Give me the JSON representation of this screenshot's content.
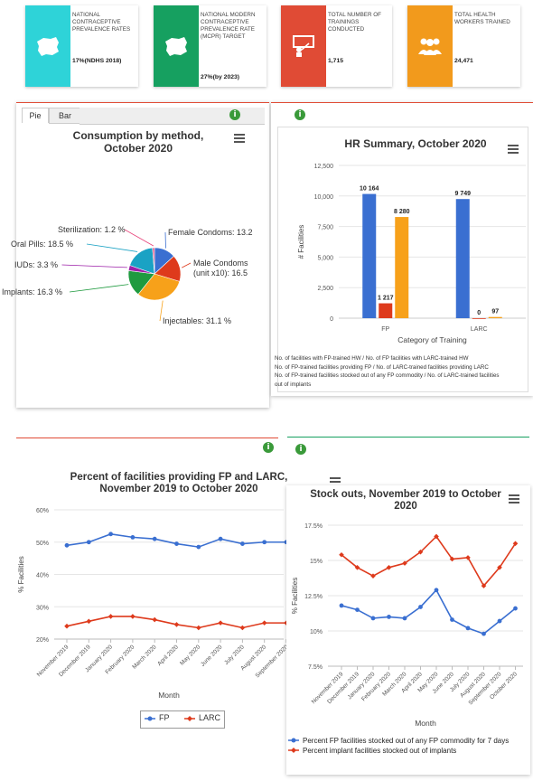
{
  "kpis": [
    {
      "label": "NATIONAL CONTRACEPTIVE PREVALENCE RATES",
      "value": "17%(NDHS 2018)",
      "color": "#2ed3d8",
      "icon": "nigeria-map-icon"
    },
    {
      "label": "NATIONAL MODERN CONTRACEPTIVE PREVALENCE RATE (mCPR) TARGET",
      "value": "27%(by 2023)",
      "color": "#16a060",
      "icon": "nigeria-map-icon"
    },
    {
      "label": "TOTAL NUMBER OF TRAININGS CONDUCTED",
      "value": "1,715",
      "color": "#e04b35",
      "icon": "training-icon"
    },
    {
      "label": "TOTAL HEALTH WORKERS TRAINED",
      "value": "24,471",
      "color": "#f29a1c",
      "icon": "people-icon"
    }
  ],
  "tabs": {
    "pie": "Pie",
    "bar": "Bar"
  },
  "info_glyph": "i",
  "charts": [
    {
      "id": "consumption",
      "chart_data": {
        "type": "pie",
        "title": "Consumption by method, October 2020",
        "slices": [
          {
            "label": "Female Condoms: 13.2",
            "value": 13.2,
            "color": "#3a6fd1"
          },
          {
            "label": "Male Condoms (unit x10): 16.5",
            "value": 16.5,
            "color": "#de3a1c"
          },
          {
            "label": "Injectables: 31.1 %",
            "value": 31.1,
            "color": "#f7a11a"
          },
          {
            "label": "Implants: 16.3 %",
            "value": 16.3,
            "color": "#1f9a3f"
          },
          {
            "label": "IUDs: 3.3 %",
            "value": 3.3,
            "color": "#9c1ea8"
          },
          {
            "label": "Oral Pills: 18.5 %",
            "value": 18.5,
            "color": "#1aa2c4"
          },
          {
            "label": "Sterilization: 1.2 %",
            "value": 1.2,
            "color": "#e8427a"
          }
        ]
      }
    },
    {
      "id": "hr",
      "chart_data": {
        "type": "bar",
        "title": "HR Summary, October 2020",
        "categories": [
          "FP",
          "LARC"
        ],
        "xlabel": "Category of Training",
        "ylabel": "# Facilities",
        "ylim": [
          0,
          12500
        ],
        "yticks": [
          "0",
          "2,500",
          "5,000",
          "7,500",
          "10,000",
          "12,500"
        ],
        "series": [
          {
            "name": "No. of facilities with FP-trained HW / No. of FP facilities with LARC-trained HW",
            "values": [
              10164,
              9749
            ],
            "labels": [
              "10 164",
              "9 749"
            ],
            "color": "#3a6fd1"
          },
          {
            "name": "No. of FP-trained facilities providing FP / No. of LARC-trained facilities providing LARC",
            "values": [
              1217,
              0
            ],
            "labels": [
              "1 217",
              "0"
            ],
            "color": "#de3a1c"
          },
          {
            "name": "No. of FP-trained facilities stocked out of any FP commodity / No. of LARC-trained facilities stocked out of implants",
            "values": [
              8280,
              97
            ],
            "labels": [
              "8 280",
              "97"
            ],
            "color": "#f7a11a"
          }
        ],
        "legend_lines": [
          "No. of facilities with FP-trained HW / No. of FP facilities with LARC-trained HW",
          "No. of FP-trained facilities providing FP / No. of LARC-trained facilities providing LARC",
          "No. of FP-trained facilities stocked out of any FP commodity / No. of LARC-trained facilities",
          "out of implants"
        ]
      }
    },
    {
      "id": "providing",
      "chart_data": {
        "type": "line",
        "title": "Percent of facilities providing FP and LARC, November 2019 to October 2020",
        "xlabel": "Month",
        "ylabel": "% Facilities",
        "ylim": [
          20,
          60
        ],
        "yticks": [
          "20%",
          "30%",
          "40%",
          "50%",
          "60%"
        ],
        "categories": [
          "November 2019",
          "December 2019",
          "January 2020",
          "February 2020",
          "March 2020",
          "April 2020",
          "May 2020",
          "June 2020",
          "July 2020",
          "August 2020",
          "September 2020"
        ],
        "series": [
          {
            "name": "FP",
            "values": [
              49,
              50,
              52.5,
              51.5,
              51,
              49.5,
              48.5,
              51,
              49.5,
              50,
              50
            ],
            "color": "#3a6fd1"
          },
          {
            "name": "LARC",
            "values": [
              24,
              25.5,
              27,
              27,
              26,
              24.5,
              23.5,
              25,
              23.5,
              25,
              25
            ],
            "color": "#de3a1c"
          }
        ]
      }
    },
    {
      "id": "stockouts",
      "chart_data": {
        "type": "line",
        "title": "Stock outs, November 2019 to October 2020",
        "xlabel": "Month",
        "ylabel": "% Facilities",
        "ylim": [
          7.5,
          17.5
        ],
        "yticks": [
          "7.5%",
          "10%",
          "12.5%",
          "15%",
          "17.5%"
        ],
        "categories": [
          "November 2019",
          "December 2019",
          "January 2020",
          "February 2020",
          "March 2020",
          "April 2020",
          "May 2020",
          "June 2020",
          "July 2020",
          "August 2020",
          "September 2020",
          "October 2020"
        ],
        "series": [
          {
            "name": "Percent FP facilities stocked out of any FP commodity for 7 days",
            "values": [
              11.8,
              11.5,
              10.9,
              11,
              10.9,
              11.7,
              12.9,
              10.8,
              10.2,
              9.8,
              10.7,
              11.6
            ],
            "color": "#3a6fd1"
          },
          {
            "name": "Percent implant facilities stocked out of implants",
            "values": [
              15.4,
              14.5,
              13.9,
              14.5,
              14.8,
              15.6,
              16.7,
              15.1,
              15.2,
              13.2,
              14.5,
              16.2
            ],
            "color": "#de3a1c"
          }
        ]
      }
    }
  ]
}
